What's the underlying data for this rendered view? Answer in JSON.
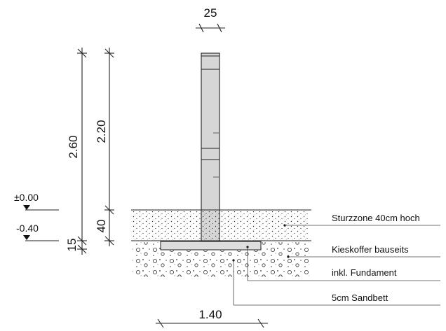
{
  "dimensions": {
    "post_width": "25",
    "total_height": "2.60",
    "above_ground": "2.20",
    "fall_zone_depth": "40",
    "bed_depth": "15",
    "foundation_width": "1.40"
  },
  "levels": {
    "ground": "±0.00",
    "base": "-0.40"
  },
  "annotations": {
    "fall_zone": "Sturzzone 40cm hoch",
    "gravel_bed": "Kieskoffer bauseits",
    "foundation": "inkl. Fundament",
    "sand_bed": "5cm Sandbett"
  }
}
